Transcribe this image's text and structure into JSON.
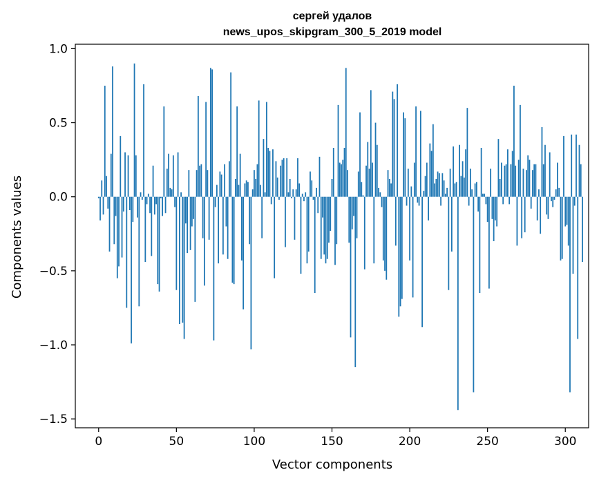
{
  "chart_data": {
    "type": "bar",
    "title_lines": [
      "сергей удалов",
      "news_upos_skipgram_300_5_2019 model"
    ],
    "xlabel": "Vector components",
    "ylabel": "Components values",
    "xlim": [
      -15,
      315
    ],
    "ylim": [
      -1.56,
      1.03
    ],
    "xticks": [
      0,
      50,
      100,
      150,
      200,
      250,
      300
    ],
    "yticks": [
      1.0,
      0.5,
      0.0,
      -0.5,
      -1.0,
      -1.5
    ],
    "ytick_labels": [
      "1.0",
      "0.5",
      "0.0",
      "−0.5",
      "−1.0",
      "−1.5"
    ],
    "bar_color": "#1f77b4",
    "values": [
      -0.01,
      -0.16,
      0.11,
      -0.12,
      0.75,
      0.14,
      -0.08,
      -0.37,
      0.29,
      0.88,
      -0.32,
      -0.13,
      -0.55,
      -0.47,
      0.41,
      -0.41,
      -0.1,
      0.3,
      -0.75,
      0.28,
      -0.09,
      -0.99,
      -0.17,
      0.9,
      0.28,
      -0.14,
      -0.74,
      0.03,
      -0.02,
      0.76,
      -0.44,
      -0.05,
      0.02,
      -0.11,
      -0.4,
      0.21,
      -0.12,
      -0.05,
      -0.59,
      -0.64,
      -0.01,
      -0.13,
      0.61,
      -0.11,
      0.19,
      0.29,
      0.06,
      0.05,
      0.28,
      -0.07,
      -0.63,
      0.3,
      -0.86,
      0.03,
      -0.85,
      -0.96,
      -0.18,
      -0.38,
      0.18,
      -0.36,
      -0.2,
      -0.15,
      -0.71,
      0.18,
      0.68,
      0.21,
      0.22,
      -0.28,
      -0.6,
      0.64,
      0.18,
      -0.29,
      0.87,
      0.86,
      -0.97,
      -0.07,
      0.08,
      -0.45,
      0.17,
      0.15,
      -0.39,
      0.22,
      -0.2,
      -0.42,
      0.24,
      0.84,
      -0.58,
      -0.59,
      0.12,
      0.61,
      0.08,
      0.29,
      -0.43,
      -0.76,
      0.09,
      0.11,
      0.1,
      -0.32,
      -1.03,
      0.05,
      0.18,
      0.12,
      0.22,
      0.65,
      0.08,
      -0.28,
      0.39,
      0.03,
      0.64,
      0.33,
      0.31,
      -0.05,
      0.32,
      -0.55,
      0.24,
      0.13,
      -0.02,
      0.21,
      0.25,
      0.26,
      -0.34,
      0.26,
      0.03,
      0.12,
      -0.01,
      0.05,
      -0.29,
      0.05,
      0.26,
      0.09,
      -0.52,
      0.02,
      -0.03,
      0.03,
      -0.45,
      -0.37,
      0.17,
      0.11,
      -0.02,
      -0.65,
      0.06,
      -0.11,
      0.27,
      -0.42,
      -0.14,
      -0.39,
      -0.45,
      -0.42,
      -0.31,
      -0.23,
      0.12,
      0.33,
      -0.46,
      -0.32,
      0.62,
      0.23,
      0.22,
      0.25,
      0.33,
      0.87,
      0.18,
      -0.31,
      -0.95,
      -0.22,
      -0.13,
      -1.15,
      -0.28,
      0.17,
      0.57,
      0.1,
      0.01,
      -0.49,
      0.21,
      0.37,
      0.19,
      0.72,
      0.23,
      -0.45,
      0.5,
      0.35,
      0.06,
      0.03,
      -0.07,
      -0.43,
      -0.5,
      -0.56,
      0.18,
      0.12,
      0.09,
      0.71,
      0.66,
      -0.33,
      0.76,
      -0.81,
      -0.74,
      -0.69,
      0.57,
      0.53,
      -0.06,
      0.19,
      -0.43,
      0.07,
      -0.68,
      0.23,
      0.61,
      -0.04,
      -0.06,
      0.58,
      -0.88,
      0.04,
      0.14,
      0.23,
      -0.16,
      0.36,
      0.31,
      0.49,
      0.09,
      0.12,
      0.17,
      0.16,
      -0.06,
      0.16,
      0.11,
      0.02,
      0.06,
      -0.63,
      0.19,
      -0.37,
      0.34,
      0.09,
      0.1,
      -1.44,
      0.35,
      0.14,
      0.24,
      0.13,
      0.32,
      0.6,
      -0.06,
      0.19,
      0.05,
      -1.32,
      0.09,
      0.1,
      -0.1,
      -0.65,
      0.33,
      0.02,
      0.02,
      -0.05,
      -0.17,
      -0.62,
      0.19,
      -0.15,
      -0.3,
      -0.16,
      -0.2,
      0.39,
      0.12,
      0.23,
      -0.05,
      0.21,
      0.22,
      0.32,
      -0.05,
      0.22,
      0.31,
      0.75,
      0.21,
      -0.33,
      0.25,
      0.62,
      -0.28,
      0.19,
      -0.24,
      0.18,
      0.28,
      0.25,
      -0.08,
      0.18,
      0.22,
      0.22,
      -0.16,
      0.05,
      -0.25,
      0.47,
      0.22,
      0.35,
      -0.12,
      -0.15,
      0.3,
      -0.03,
      -0.07,
      -0.02,
      0.05,
      0.23,
      0.06,
      -0.43,
      -0.42,
      0.41,
      -0.2,
      -0.19,
      -0.33,
      -1.32,
      0.42,
      -0.52,
      -0.06,
      0.42,
      -0.96,
      0.35,
      0.22,
      -0.44
    ]
  }
}
